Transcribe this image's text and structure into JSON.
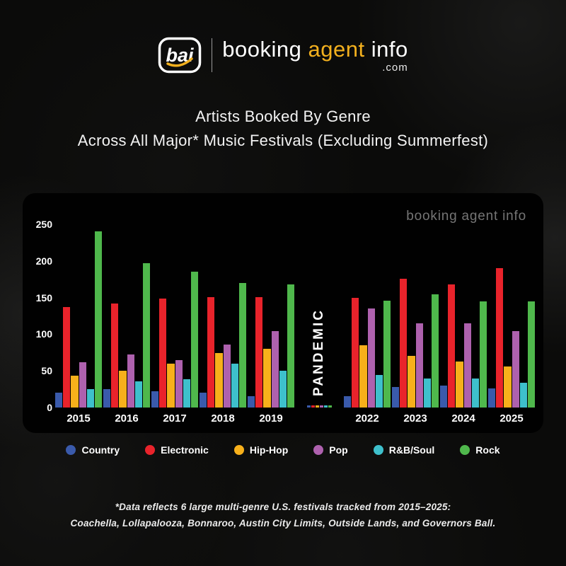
{
  "brand": {
    "mark": "bai",
    "word1": "booking ",
    "word2": "agent",
    "word3": " info",
    "suffix": ".com",
    "gold": "#f2b01e"
  },
  "title": {
    "line1": "Artists Booked By Genre",
    "line2": "Across All Major* Music Festivals (Excluding Summerfest)"
  },
  "chart": {
    "watermark": "booking agent info",
    "pandemic_label": "PANDEMIC"
  },
  "chart_data": {
    "type": "bar",
    "title": "Artists Booked By Genre Across All Major* Music Festivals (Excluding Summerfest)",
    "categories": [
      "2015",
      "2016",
      "2017",
      "2018",
      "2019",
      "PANDEMIC",
      "2022",
      "2023",
      "2024",
      "2025"
    ],
    "series": [
      {
        "name": "Country",
        "color": "#3a5aab",
        "values": [
          20,
          25,
          22,
          20,
          15,
          3,
          15,
          28,
          30,
          26
        ]
      },
      {
        "name": "Electronic",
        "color": "#e9232b",
        "values": [
          137,
          142,
          149,
          151,
          151,
          3,
          150,
          176,
          168,
          190
        ]
      },
      {
        "name": "Hip-Hop",
        "color": "#f7b01b",
        "values": [
          43,
          50,
          60,
          74,
          80,
          3,
          85,
          70,
          63,
          56
        ]
      },
      {
        "name": "Pop",
        "color": "#ae61ae",
        "values": [
          62,
          72,
          65,
          86,
          104,
          3,
          135,
          115,
          115,
          104
        ]
      },
      {
        "name": "R&B/Soul",
        "color": "#3ec0cc",
        "values": [
          25,
          36,
          39,
          60,
          50,
          3,
          44,
          40,
          40,
          34
        ]
      },
      {
        "name": "Rock",
        "color": "#4fb84c",
        "values": [
          240,
          197,
          185,
          170,
          168,
          3,
          146,
          154,
          145,
          145
        ]
      }
    ],
    "ylim": [
      0,
      250
    ],
    "yticks": [
      0,
      50,
      100,
      150,
      200,
      250
    ],
    "xlabel": "",
    "ylabel": "",
    "grid": false,
    "legend_position": "bottom"
  },
  "footnote": {
    "line1": "*Data reflects 6 large multi-genre U.S. festivals tracked from 2015–2025:",
    "line2": "Coachella, Lollapalooza, Bonnaroo, Austin City Limits, Outside Lands, and Governors Ball."
  }
}
